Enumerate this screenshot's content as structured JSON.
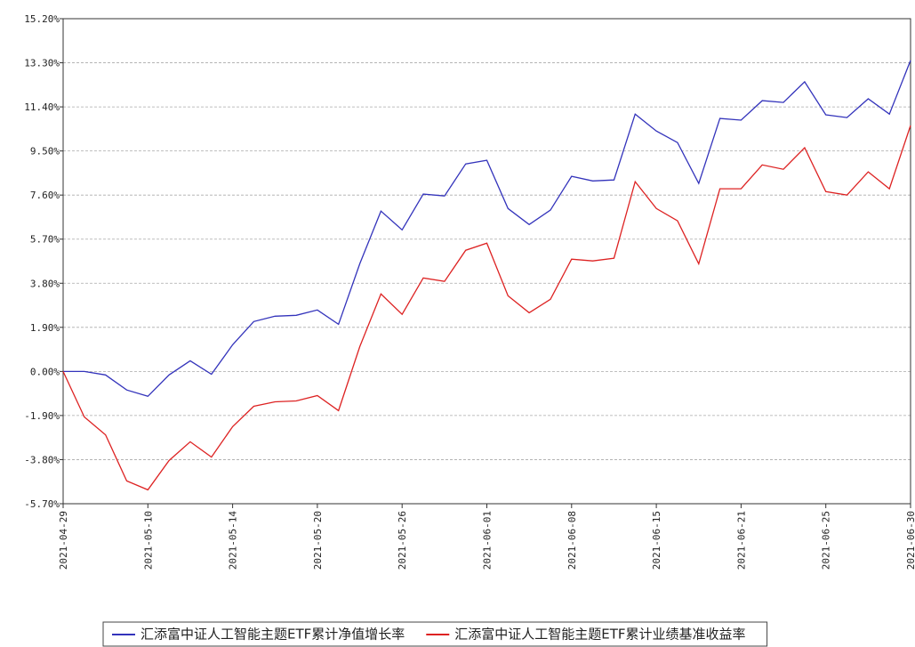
{
  "chart_data": {
    "type": "line",
    "categories": [
      "2021-04-29",
      null,
      null,
      null,
      "2021-05-10",
      null,
      null,
      null,
      "2021-05-14",
      null,
      null,
      null,
      "2021-05-20",
      null,
      null,
      null,
      "2021-05-26",
      null,
      null,
      null,
      "2021-06-01",
      null,
      null,
      null,
      "2021-06-08",
      null,
      null,
      null,
      "2021-06-15",
      null,
      null,
      null,
      "2021-06-21",
      null,
      null,
      null,
      "2021-06-25",
      null,
      null,
      null,
      "2021-06-30"
    ],
    "series": [
      {
        "name": "汇添富中证人工智能主题ETF累计净值增长率",
        "color": "#3333bb",
        "values": [
          0,
          0,
          -0.15,
          -0.8,
          -1.07,
          -0.15,
          0.46,
          -0.12,
          1.15,
          2.15,
          2.38,
          2.42,
          2.65,
          2.03,
          4.64,
          6.91,
          6.1,
          7.64,
          7.56,
          8.94,
          9.1,
          7.02,
          6.33,
          6.95,
          8.41,
          8.21,
          8.25,
          11.09,
          10.36,
          9.86,
          8.1,
          10.9,
          10.83,
          11.67,
          11.59,
          12.48,
          11.06,
          10.94,
          11.75,
          11.09,
          13.4
        ]
      },
      {
        "name": "汇添富中证人工智能主题ETF累计业绩基准收益率",
        "color": "#dd2222",
        "values": [
          0,
          -1.96,
          -2.73,
          -4.72,
          -5.1,
          -3.84,
          -3.03,
          -3.69,
          -2.38,
          -1.5,
          -1.31,
          -1.27,
          -1.04,
          -1.69,
          1.07,
          3.34,
          2.46,
          4.03,
          3.88,
          5.22,
          5.53,
          3.26,
          2.53,
          3.11,
          4.84,
          4.76,
          4.88,
          8.18,
          7.02,
          6.49,
          4.64,
          7.87,
          7.87,
          8.9,
          8.71,
          9.64,
          7.75,
          7.6,
          8.6,
          7.87,
          10.6
        ]
      }
    ],
    "ylim": [
      -5.7,
      15.2
    ],
    "yticks": [
      {
        "value": 15.2,
        "label": "15.20%"
      },
      {
        "value": 13.3,
        "label": "13.30%"
      },
      {
        "value": 11.4,
        "label": "11.40%"
      },
      {
        "value": 9.5,
        "label": "9.50%"
      },
      {
        "value": 7.6,
        "label": "7.60%"
      },
      {
        "value": 5.7,
        "label": "5.70%"
      },
      {
        "value": 3.8,
        "label": "3.80%"
      },
      {
        "value": 1.9,
        "label": "1.90%"
      },
      {
        "value": 0,
        "label": "0.00%"
      },
      {
        "value": -1.9,
        "label": "-1.90%"
      },
      {
        "value": -3.8,
        "label": "-3.80%"
      },
      {
        "value": -5.7,
        "label": "-5.70%"
      }
    ],
    "grid": true,
    "legend": "bottom"
  }
}
